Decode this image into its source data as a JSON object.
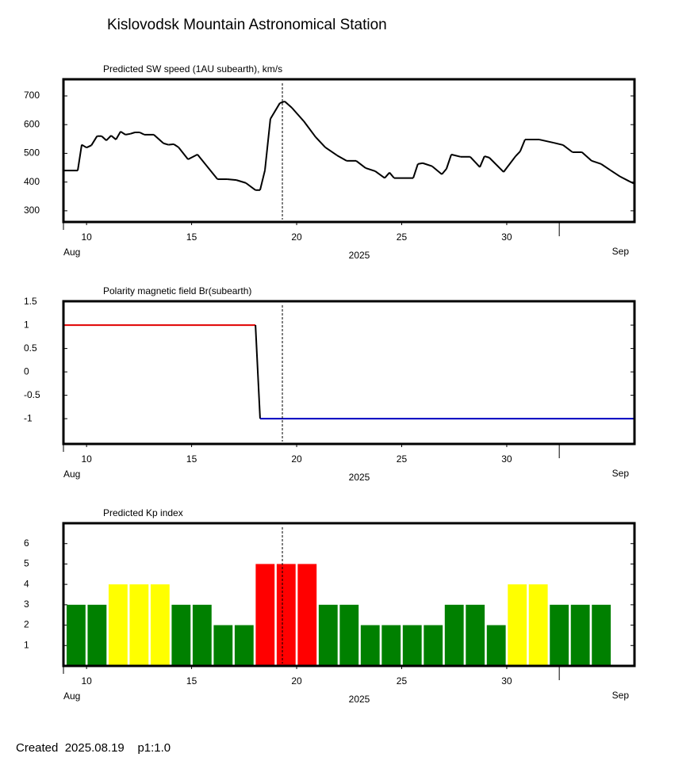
{
  "title": "Kislovodsk Mountain Astronomical Station",
  "footer": "Created  2025.08.19    p1:1.0",
  "chart_data": [
    {
      "type": "line",
      "title": "Predicted SW speed (1AU subearth), km/s",
      "x_start_label": "Aug",
      "x_end_label": "Sep",
      "x_year_label": "2025",
      "xlim": [
        8.9,
        36.08
      ],
      "xticks": [
        10,
        15,
        20,
        25,
        30
      ],
      "month_ticks": [
        32.5
      ],
      "now_line": 19.32,
      "ylim": [
        261,
        758
      ],
      "yticks": [
        300,
        400,
        500,
        600,
        700
      ],
      "series": [
        {
          "color": "#000000",
          "x": [
            8.9,
            9.58,
            9.77,
            10.0,
            10.23,
            10.5,
            10.72,
            10.94,
            11.17,
            11.4,
            11.62,
            11.85,
            12.08,
            12.3,
            12.53,
            12.75,
            13.2,
            13.66,
            13.89,
            14.15,
            14.38,
            14.83,
            15.28,
            16.23,
            16.68,
            17.13,
            17.58,
            18.04,
            18.26,
            18.49,
            18.75,
            19.2,
            19.43,
            19.77,
            20.34,
            20.9,
            21.36,
            21.92,
            22.38,
            22.83,
            23.28,
            23.74,
            24.19,
            24.42,
            24.64,
            25.55,
            25.77,
            26.0,
            26.45,
            26.91,
            27.13,
            27.36,
            27.81,
            28.26,
            28.72,
            28.94,
            29.17,
            29.85,
            30.42,
            30.64,
            30.87,
            31.55,
            32.23,
            32.68,
            33.13,
            33.58,
            34.04,
            34.49,
            34.94,
            35.4,
            35.85,
            36.08
          ],
          "values": [
            440,
            440,
            530,
            520,
            528,
            560,
            560,
            545,
            562,
            548,
            576,
            565,
            568,
            573,
            573,
            565,
            565,
            535,
            530,
            532,
            521,
            479,
            496,
            410,
            410,
            407,
            397,
            372,
            372,
            441,
            620,
            675,
            681,
            659,
            612,
            557,
            521,
            493,
            474,
            474,
            449,
            438,
            414,
            433,
            414,
            414,
            463,
            466,
            455,
            427,
            446,
            496,
            488,
            488,
            452,
            490,
            485,
            435,
            490,
            507,
            548,
            548,
            537,
            529,
            504,
            504,
            474,
            463,
            441,
            419,
            402,
            394
          ]
        }
      ]
    },
    {
      "type": "line",
      "title": "Polarity magnetic field  Br(subearth)",
      "x_start_label": "Aug",
      "x_end_label": "Sep",
      "x_year_label": "2025",
      "xlim": [
        8.9,
        36.08
      ],
      "xticks": [
        10,
        15,
        20,
        25,
        30
      ],
      "month_ticks": [
        32.5
      ],
      "now_line": 19.32,
      "ylim": [
        -1.54,
        1.51
      ],
      "yticks": [
        1.5,
        1,
        0.5,
        0,
        -0.5,
        -1
      ],
      "series": [
        {
          "color": "#000000",
          "positive_color": "#e00000",
          "negative_color": "#0000c0",
          "x": [
            8.9,
            18.04,
            18.26,
            36.08
          ],
          "values": [
            1,
            1,
            -1,
            -1
          ]
        }
      ]
    },
    {
      "type": "bar",
      "title": "Predicted Kp index",
      "x_start_label": "Aug",
      "x_end_label": "Sep",
      "x_year_label": "2025",
      "xlim": [
        8.9,
        36.08
      ],
      "xticks": [
        10,
        15,
        20,
        25,
        30
      ],
      "month_ticks": [
        32.5
      ],
      "now_line": 19.32,
      "ylim": [
        0,
        7
      ],
      "yticks": [
        1,
        2,
        3,
        4,
        5,
        6
      ],
      "x": [
        9.5,
        10.5,
        11.5,
        12.5,
        13.5,
        14.5,
        15.5,
        16.5,
        17.5,
        18.5,
        19.5,
        20.5,
        21.5,
        22.5,
        23.5,
        24.5,
        25.5,
        26.5,
        27.5,
        28.5,
        29.5,
        30.5,
        31.5,
        32.5,
        33.5,
        34.5
      ],
      "values": [
        3,
        3,
        4,
        4,
        4,
        3,
        3,
        2,
        2,
        5,
        5,
        5,
        3,
        3,
        2,
        2,
        2,
        2,
        3,
        3,
        2,
        4,
        4,
        3,
        3,
        3
      ],
      "colors": [
        "#008000",
        "#008000",
        "#ffff00",
        "#ffff00",
        "#ffff00",
        "#008000",
        "#008000",
        "#008000",
        "#008000",
        "#ff0000",
        "#ff0000",
        "#ff0000",
        "#008000",
        "#008000",
        "#008000",
        "#008000",
        "#008000",
        "#008000",
        "#008000",
        "#008000",
        "#008000",
        "#ffff00",
        "#ffff00",
        "#008000",
        "#008000",
        "#008000"
      ]
    }
  ]
}
